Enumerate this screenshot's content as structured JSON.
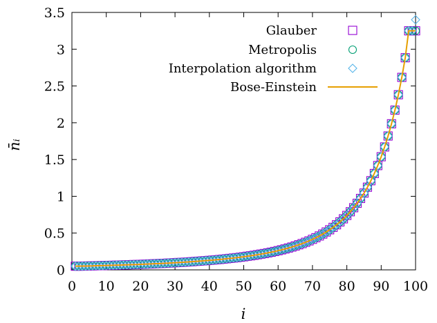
{
  "chart_data": {
    "type": "scatter",
    "title": "",
    "xlabel": "i",
    "ylabel": "n̄ᵢ",
    "xlim": [
      0,
      100
    ],
    "ylim": [
      0,
      3.5
    ],
    "xticks": [
      "0",
      "10",
      "20",
      "30",
      "40",
      "50",
      "60",
      "70",
      "80",
      "90",
      "100"
    ],
    "yticks": [
      "0",
      "0.5",
      "1",
      "1.5",
      "2",
      "2.5",
      "3",
      "3.5"
    ],
    "grid": false,
    "legend_position": "top-right",
    "x": [
      1,
      2,
      3,
      4,
      5,
      6,
      7,
      8,
      9,
      10,
      11,
      12,
      13,
      14,
      15,
      16,
      17,
      18,
      19,
      20,
      21,
      22,
      23,
      24,
      25,
      26,
      27,
      28,
      29,
      30,
      31,
      32,
      33,
      34,
      35,
      36,
      37,
      38,
      39,
      40,
      41,
      42,
      43,
      44,
      45,
      46,
      47,
      48,
      49,
      50,
      51,
      52,
      53,
      54,
      55,
      56,
      57,
      58,
      59,
      60,
      61,
      62,
      63,
      64,
      65,
      66,
      67,
      68,
      69,
      70,
      71,
      72,
      73,
      74,
      75,
      76,
      77,
      78,
      79,
      80,
      81,
      82,
      83,
      84,
      85,
      86,
      87,
      88,
      89,
      90,
      91,
      92,
      93,
      94,
      95,
      96,
      97,
      98,
      99,
      100
    ],
    "series": [
      {
        "name": "Glauber",
        "marker": "square",
        "color": "#9400d3",
        "values": [
          0.05,
          0.05,
          0.051,
          0.052,
          0.053,
          0.054,
          0.056,
          0.057,
          0.058,
          0.06,
          0.061,
          0.062,
          0.064,
          0.065,
          0.067,
          0.068,
          0.07,
          0.072,
          0.073,
          0.075,
          0.077,
          0.079,
          0.081,
          0.083,
          0.085,
          0.087,
          0.089,
          0.092,
          0.094,
          0.097,
          0.1,
          0.102,
          0.105,
          0.108,
          0.111,
          0.115,
          0.118,
          0.122,
          0.125,
          0.129,
          0.133,
          0.137,
          0.141,
          0.146,
          0.151,
          0.156,
          0.161,
          0.166,
          0.172,
          0.178,
          0.185,
          0.191,
          0.198,
          0.206,
          0.214,
          0.222,
          0.231,
          0.24,
          0.25,
          0.261,
          0.272,
          0.284,
          0.297,
          0.31,
          0.325,
          0.341,
          0.357,
          0.375,
          0.394,
          0.415,
          0.437,
          0.461,
          0.487,
          0.515,
          0.545,
          0.578,
          0.613,
          0.652,
          0.694,
          0.74,
          0.79,
          0.845,
          0.905,
          0.971,
          1.044,
          1.124,
          1.212,
          1.31,
          1.418,
          1.538,
          1.671,
          1.82,
          1.986,
          2.172,
          2.381,
          2.617,
          2.884,
          3.25,
          3.25,
          3.25
        ]
      },
      {
        "name": "Metropolis",
        "marker": "circle",
        "color": "#009e73",
        "values": [
          0.05,
          0.05,
          0.051,
          0.052,
          0.053,
          0.054,
          0.056,
          0.057,
          0.058,
          0.06,
          0.061,
          0.062,
          0.064,
          0.065,
          0.067,
          0.068,
          0.07,
          0.072,
          0.073,
          0.075,
          0.077,
          0.079,
          0.081,
          0.083,
          0.085,
          0.087,
          0.089,
          0.092,
          0.094,
          0.097,
          0.1,
          0.102,
          0.105,
          0.108,
          0.111,
          0.115,
          0.118,
          0.122,
          0.125,
          0.129,
          0.133,
          0.137,
          0.141,
          0.146,
          0.151,
          0.156,
          0.161,
          0.166,
          0.172,
          0.178,
          0.185,
          0.191,
          0.198,
          0.206,
          0.214,
          0.222,
          0.231,
          0.24,
          0.25,
          0.261,
          0.272,
          0.284,
          0.297,
          0.31,
          0.325,
          0.341,
          0.357,
          0.375,
          0.394,
          0.415,
          0.437,
          0.461,
          0.487,
          0.515,
          0.545,
          0.578,
          0.613,
          0.652,
          0.694,
          0.74,
          0.79,
          0.845,
          0.905,
          0.971,
          1.044,
          1.124,
          1.212,
          1.31,
          1.418,
          1.538,
          1.671,
          1.82,
          1.986,
          2.172,
          2.381,
          2.617,
          2.884,
          3.25,
          3.25,
          3.25
        ]
      },
      {
        "name": "Interpolation algorithm",
        "marker": "diamond",
        "color": "#56b4e9",
        "values": [
          0.05,
          0.05,
          0.051,
          0.052,
          0.053,
          0.054,
          0.056,
          0.057,
          0.058,
          0.06,
          0.061,
          0.062,
          0.064,
          0.065,
          0.067,
          0.068,
          0.07,
          0.072,
          0.073,
          0.075,
          0.077,
          0.079,
          0.081,
          0.083,
          0.085,
          0.087,
          0.089,
          0.092,
          0.094,
          0.097,
          0.1,
          0.102,
          0.105,
          0.108,
          0.111,
          0.115,
          0.118,
          0.122,
          0.125,
          0.129,
          0.133,
          0.137,
          0.141,
          0.146,
          0.151,
          0.156,
          0.161,
          0.166,
          0.172,
          0.178,
          0.185,
          0.191,
          0.198,
          0.206,
          0.214,
          0.222,
          0.231,
          0.24,
          0.25,
          0.261,
          0.272,
          0.284,
          0.297,
          0.31,
          0.325,
          0.341,
          0.357,
          0.375,
          0.394,
          0.415,
          0.437,
          0.461,
          0.487,
          0.515,
          0.545,
          0.578,
          0.613,
          0.652,
          0.694,
          0.74,
          0.79,
          0.845,
          0.905,
          0.971,
          1.044,
          1.124,
          1.212,
          1.31,
          1.418,
          1.538,
          1.671,
          1.82,
          1.986,
          2.172,
          2.381,
          2.617,
          2.884,
          3.25,
          3.25,
          3.4
        ]
      },
      {
        "name": "Bose-Einstein",
        "marker": "line",
        "color": "#e69f00",
        "values": [
          0.05,
          0.05,
          0.051,
          0.052,
          0.053,
          0.054,
          0.056,
          0.057,
          0.058,
          0.06,
          0.061,
          0.062,
          0.064,
          0.065,
          0.067,
          0.068,
          0.07,
          0.072,
          0.073,
          0.075,
          0.077,
          0.079,
          0.081,
          0.083,
          0.085,
          0.087,
          0.089,
          0.092,
          0.094,
          0.097,
          0.1,
          0.102,
          0.105,
          0.108,
          0.111,
          0.115,
          0.118,
          0.122,
          0.125,
          0.129,
          0.133,
          0.137,
          0.141,
          0.146,
          0.151,
          0.156,
          0.161,
          0.166,
          0.172,
          0.178,
          0.185,
          0.191,
          0.198,
          0.206,
          0.214,
          0.222,
          0.231,
          0.24,
          0.25,
          0.261,
          0.272,
          0.284,
          0.297,
          0.31,
          0.325,
          0.341,
          0.357,
          0.375,
          0.394,
          0.415,
          0.437,
          0.461,
          0.487,
          0.515,
          0.545,
          0.578,
          0.613,
          0.652,
          0.694,
          0.74,
          0.79,
          0.845,
          0.905,
          0.971,
          1.044,
          1.124,
          1.212,
          1.31,
          1.418,
          1.538,
          1.671,
          1.82,
          1.986,
          2.172,
          2.381,
          2.617,
          2.884,
          3.25,
          3.25,
          3.25
        ]
      }
    ]
  }
}
